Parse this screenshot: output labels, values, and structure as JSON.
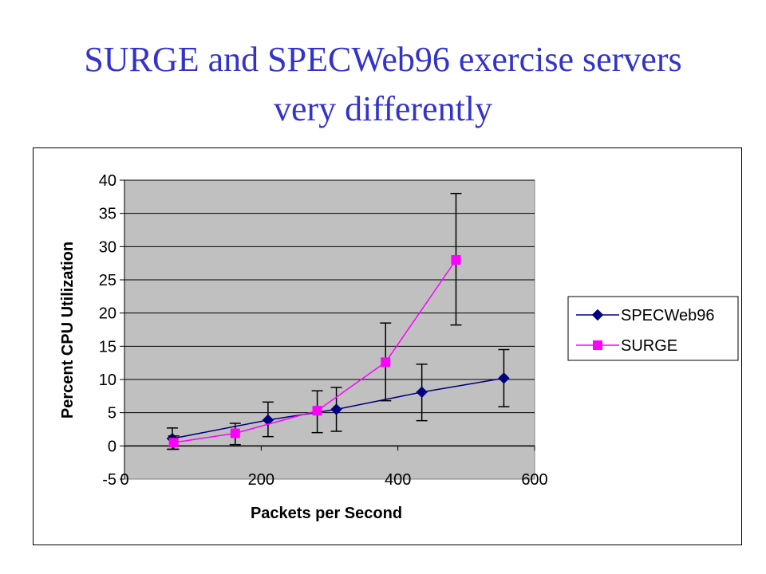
{
  "slide": {
    "title_line1": "SURGE and SPECWeb96 exercise servers",
    "title_line2": "very differently"
  },
  "colors": {
    "title": "#3333cc",
    "plot_background": "#c0c0c0",
    "specweb": "#000080",
    "surge": "#ff00ff"
  },
  "chart_data": {
    "type": "line",
    "xlabel": "Packets per Second",
    "ylabel": "Percent CPU Utilization",
    "xlim": [
      0,
      600
    ],
    "ylim": [
      -5,
      40
    ],
    "xticks": [
      0,
      200,
      400,
      600
    ],
    "yticks": [
      -5,
      0,
      5,
      10,
      15,
      20,
      25,
      30,
      35,
      40
    ],
    "grid": "horizontal",
    "legend_position": "right",
    "series": [
      {
        "name": "SPECWeb96",
        "marker": "diamond",
        "points": [
          {
            "x": 70,
            "y": 1.1,
            "err_low": 1.6,
            "err_high": 1.6
          },
          {
            "x": 210,
            "y": 3.9,
            "err_low": 2.5,
            "err_high": 2.7
          },
          {
            "x": 310,
            "y": 5.5,
            "err_low": 3.3,
            "err_high": 3.3
          },
          {
            "x": 435,
            "y": 8.1,
            "err_low": 4.3,
            "err_high": 4.2
          },
          {
            "x": 555,
            "y": 10.2,
            "err_low": 4.3,
            "err_high": 4.3
          }
        ]
      },
      {
        "name": "SURGE",
        "marker": "square",
        "points": [
          {
            "x": 72,
            "y": 0.5,
            "err_low": 1.0,
            "err_high": 1.0
          },
          {
            "x": 162,
            "y": 1.9,
            "err_low": 1.7,
            "err_high": 1.5
          },
          {
            "x": 282,
            "y": 5.3,
            "err_low": 3.3,
            "err_high": 3.0
          },
          {
            "x": 382,
            "y": 12.6,
            "err_low": 5.8,
            "err_high": 5.9
          },
          {
            "x": 485,
            "y": 28.0,
            "err_low": 9.8,
            "err_high": 10.0
          }
        ]
      }
    ]
  }
}
